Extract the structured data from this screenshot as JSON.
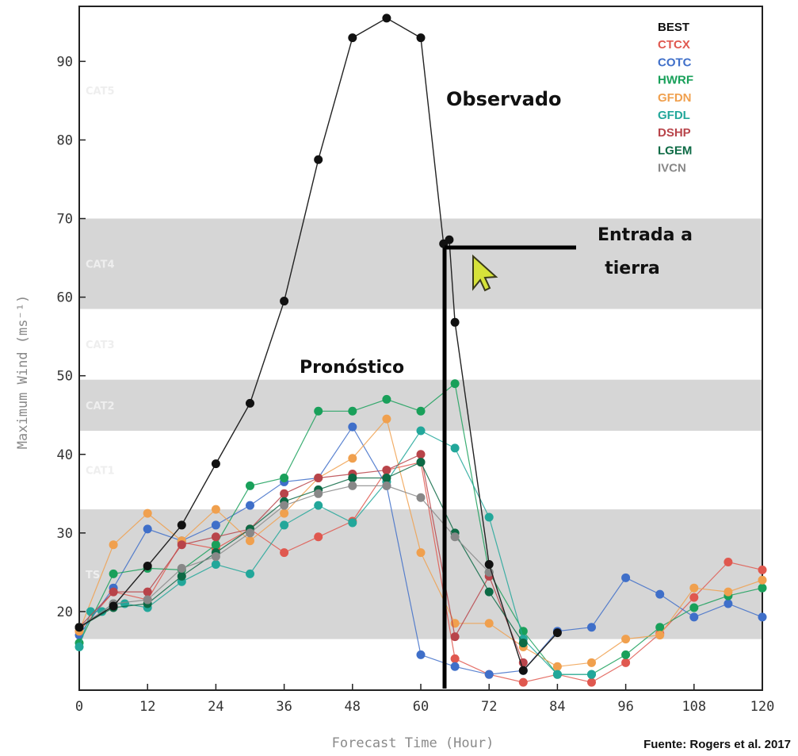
{
  "chart_data": {
    "type": "line",
    "xlabel": "Forecast Time (Hour)",
    "ylabel": "Maximum Wind (ms⁻¹)",
    "xlim": [
      0,
      120
    ],
    "ylim": [
      10,
      97
    ],
    "x_ticks": [
      0,
      12,
      24,
      36,
      48,
      60,
      72,
      84,
      96,
      108,
      120
    ],
    "y_ticks": [
      20,
      30,
      40,
      50,
      60,
      70,
      80,
      90
    ],
    "category_bands": [
      {
        "label": "TS",
        "from": 16.5,
        "to": 33,
        "shaded": true
      },
      {
        "label": "CAT1",
        "from": 33,
        "to": 43,
        "shaded": false
      },
      {
        "label": "CAT2",
        "from": 43,
        "to": 49.5,
        "shaded": true
      },
      {
        "label": "CAT3",
        "from": 49.5,
        "to": 58.5,
        "shaded": false
      },
      {
        "label": "CAT4",
        "from": 58.5,
        "to": 70,
        "shaded": true
      },
      {
        "label": "CAT5",
        "from": 70,
        "to": 97,
        "shaded": false
      }
    ],
    "legend_position": "top-right",
    "series": [
      {
        "name": "BEST",
        "color": "#111111",
        "x": [
          0,
          6,
          12,
          18,
          24,
          30,
          36,
          42,
          48,
          54,
          60,
          64,
          65,
          66,
          72,
          78,
          84
        ],
        "y": [
          18,
          20.7,
          25.8,
          31,
          38.8,
          46.5,
          59.5,
          77.5,
          93,
          95.5,
          93,
          66.8,
          67.3,
          56.8,
          26,
          12.5,
          17.3
        ]
      },
      {
        "name": "CTCX",
        "color": "#e0584f",
        "x": [
          0,
          6,
          12,
          18,
          24,
          30,
          36,
          42,
          48,
          54,
          60,
          66,
          72,
          78,
          84,
          90,
          96,
          102,
          108,
          114,
          120
        ],
        "y": [
          17.5,
          22.5,
          21.5,
          28.8,
          28,
          30.5,
          27.5,
          29.5,
          31.5,
          38,
          39,
          14,
          12,
          11,
          12,
          11,
          13.5,
          17.2,
          21.8,
          26.3,
          25.3
        ]
      },
      {
        "name": "COTC",
        "color": "#3f6fc9",
        "x": [
          0,
          6,
          12,
          18,
          24,
          30,
          36,
          42,
          48,
          54,
          60,
          66,
          72,
          78,
          84,
          90,
          96,
          102,
          108,
          114,
          120
        ],
        "y": [
          17,
          23,
          30.5,
          29,
          31,
          33.5,
          36.5,
          37,
          43.5,
          36,
          14.5,
          13,
          12,
          12.5,
          17.5,
          18,
          24.3,
          22.2,
          19.3,
          21,
          19.3
        ]
      },
      {
        "name": "HWRF",
        "color": "#19a05a",
        "x": [
          0,
          6,
          12,
          18,
          24,
          30,
          36,
          42,
          48,
          54,
          60,
          66,
          72,
          78,
          84,
          90,
          96,
          102,
          108,
          114,
          120
        ],
        "y": [
          16,
          24.8,
          25.5,
          25.3,
          28.5,
          36,
          37,
          45.5,
          45.5,
          47,
          45.5,
          49,
          25,
          17.5,
          12,
          12,
          14.5,
          18,
          20.5,
          22,
          23
        ]
      },
      {
        "name": "GFDN",
        "color": "#f0a04e",
        "x": [
          0,
          6,
          12,
          18,
          24,
          30,
          36,
          42,
          48,
          54,
          60,
          66,
          72,
          78,
          84,
          90,
          96,
          102,
          108,
          114,
          120
        ],
        "y": [
          17.5,
          28.5,
          32.5,
          29,
          33,
          29,
          32.5,
          37,
          39.5,
          44.5,
          27.5,
          18.5,
          18.5,
          15.5,
          13,
          13.5,
          16.5,
          17,
          23,
          22.5,
          24
        ]
      },
      {
        "name": "GFDL",
        "color": "#22a79a",
        "x": [
          0,
          2,
          4,
          6,
          8,
          12,
          18,
          24,
          30,
          36,
          42,
          48,
          54,
          60,
          66,
          72,
          78,
          84,
          90
        ],
        "y": [
          15.5,
          20,
          20,
          21,
          21,
          20.5,
          23.8,
          26,
          24.8,
          31,
          33.5,
          31.3,
          36.5,
          43,
          40.8,
          32,
          16.5,
          12,
          12
        ]
      },
      {
        "name": "DSHP",
        "color": "#b8444a",
        "x": [
          0,
          6,
          12,
          18,
          24,
          30,
          36,
          42,
          48,
          54,
          60,
          66,
          72,
          78
        ],
        "y": [
          18,
          22.5,
          22.5,
          28.5,
          29.5,
          30.5,
          35,
          37,
          37.5,
          38,
          40,
          16.8,
          24.5,
          13.5
        ]
      },
      {
        "name": "LGEM",
        "color": "#0d6a45",
        "x": [
          0,
          6,
          12,
          18,
          24,
          30,
          36,
          42,
          48,
          54,
          60,
          66,
          72,
          78
        ],
        "y": [
          18,
          20.5,
          21,
          24.5,
          27.5,
          30.5,
          34,
          35.5,
          37,
          37,
          39,
          30,
          22.5,
          16
        ]
      },
      {
        "name": "IVCN",
        "color": "#888888",
        "x": [
          0,
          6,
          12,
          18,
          24,
          30,
          36,
          42,
          48,
          54,
          60,
          66,
          72
        ],
        "y": [
          18,
          21,
          21.5,
          25.5,
          27,
          30,
          33.5,
          35,
          36,
          36,
          34.5,
          29.5,
          25
        ]
      }
    ]
  },
  "annotations": {
    "observed": "Observado",
    "forecast": "Pronóstico",
    "landfall_line1": "Entrada a",
    "landfall_line2": "tierra",
    "source": "Fuente: Rogers et al. 2017"
  }
}
